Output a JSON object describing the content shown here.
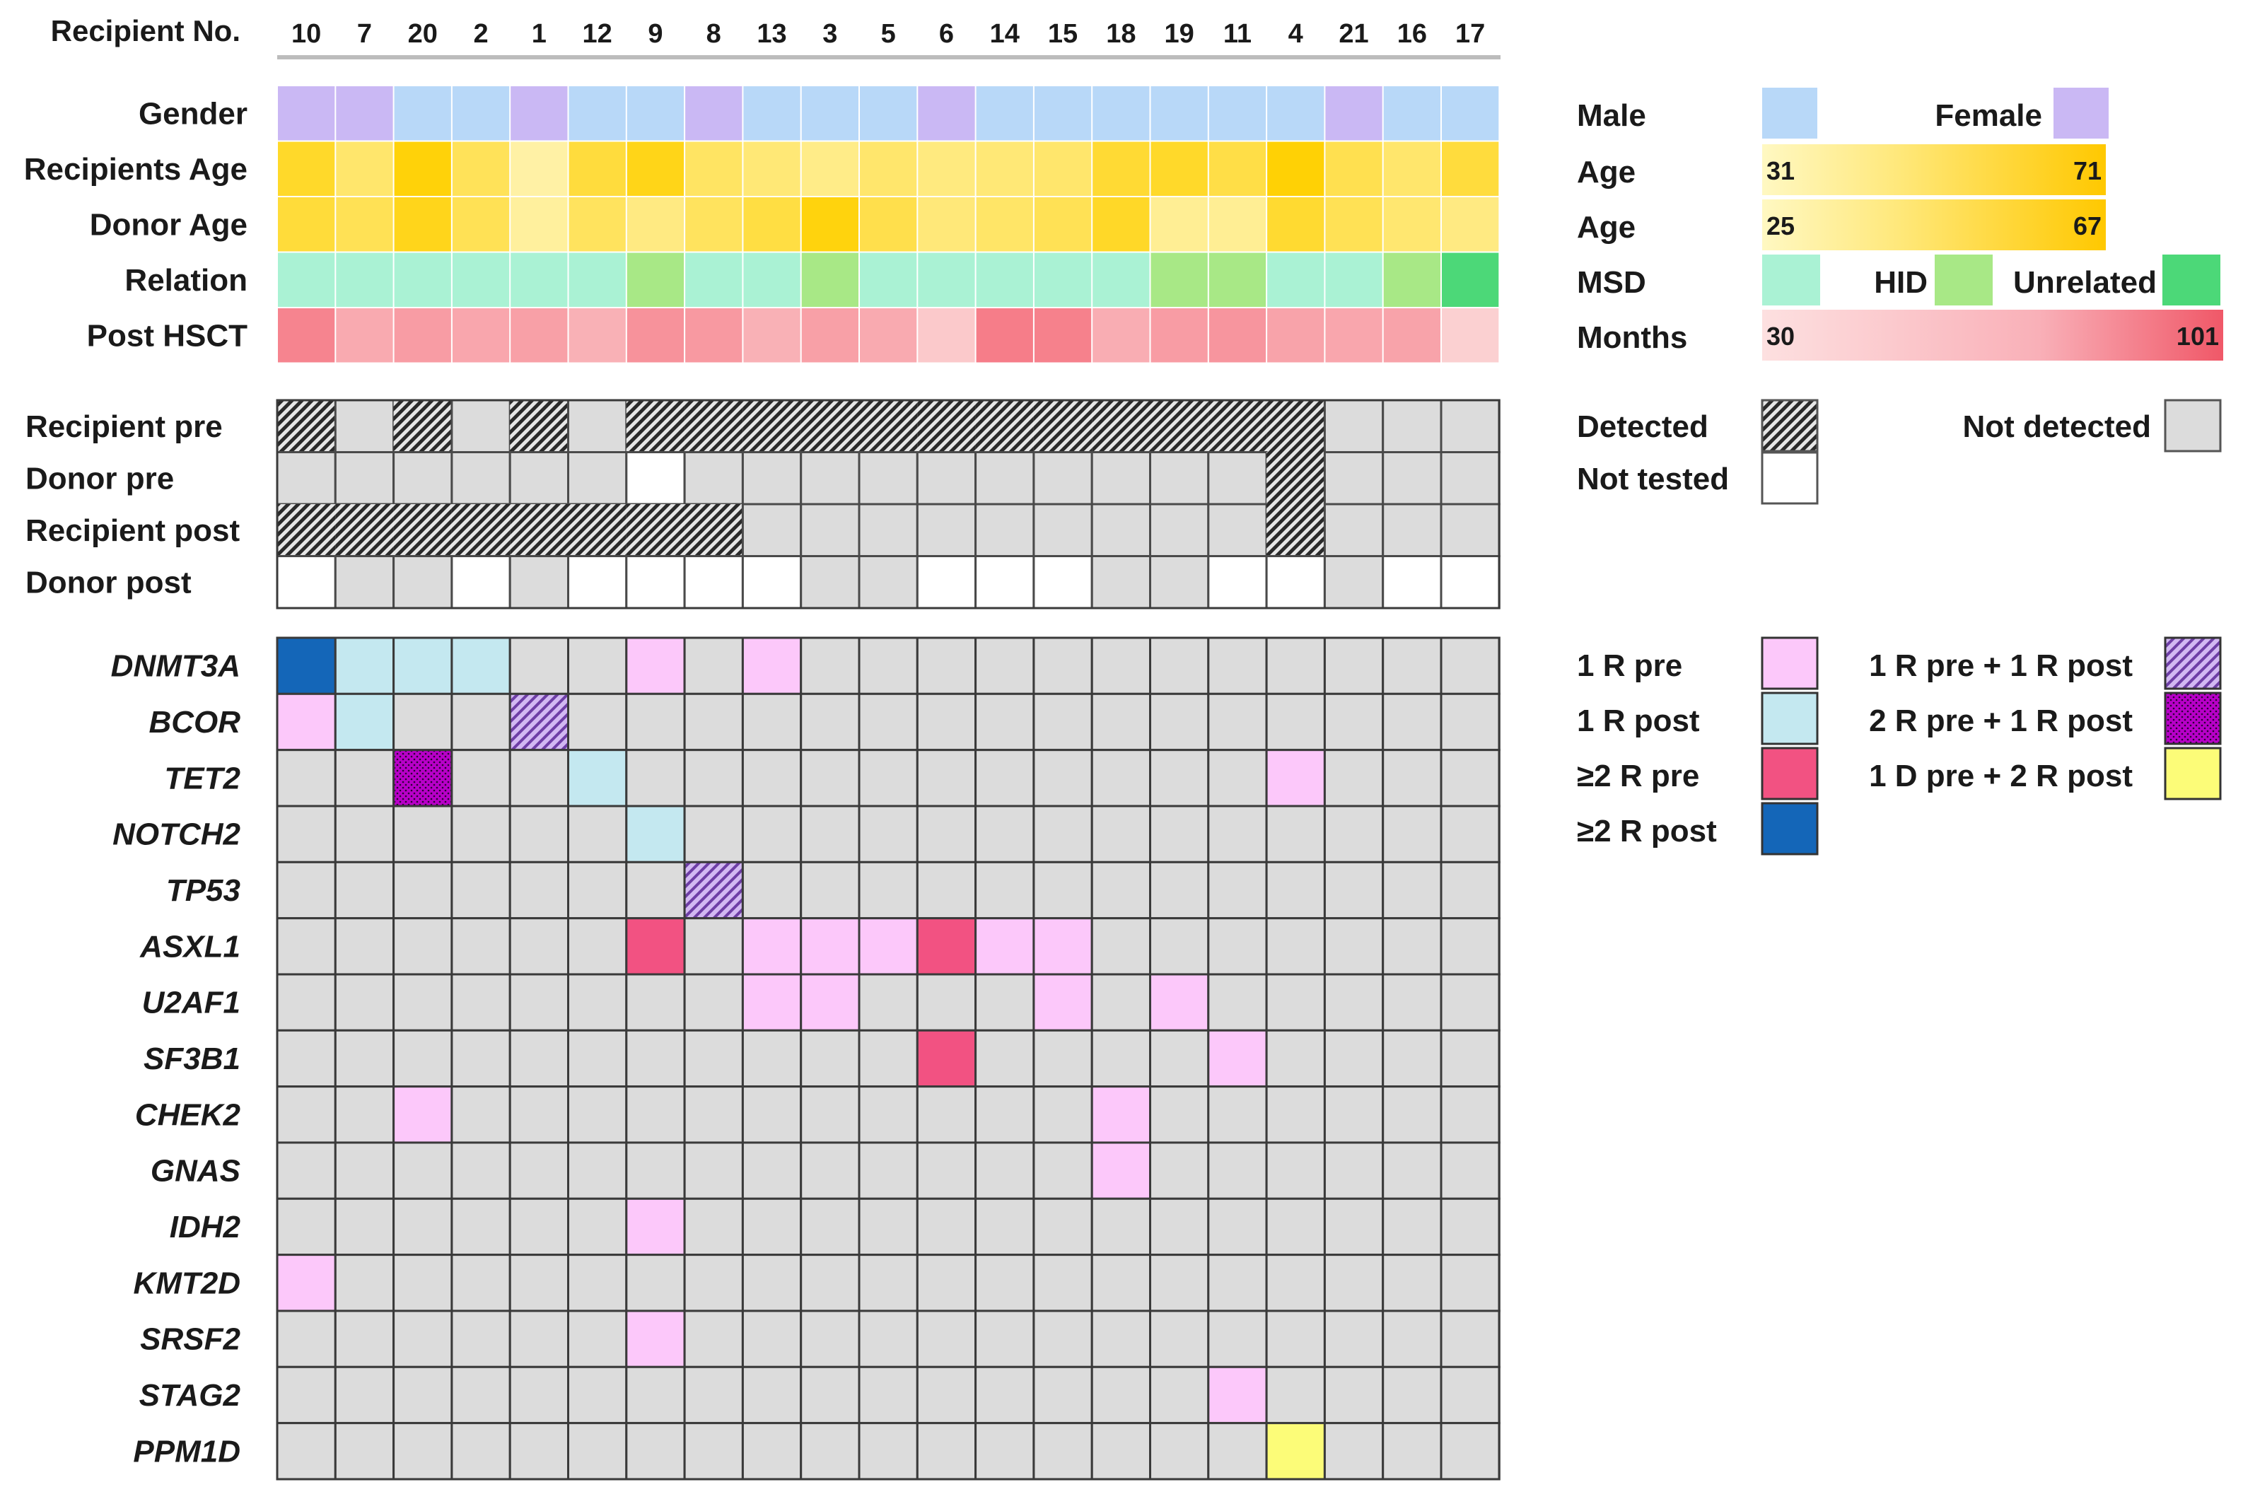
{
  "chart_data": {
    "type": "heatmap",
    "title": "",
    "recipient_header": "Recipient No.",
    "recipients": [
      "10",
      "7",
      "20",
      "2",
      "1",
      "12",
      "9",
      "8",
      "13",
      "3",
      "5",
      "6",
      "14",
      "15",
      "18",
      "19",
      "11",
      "4",
      "21",
      "16",
      "17"
    ],
    "clinical_rows": [
      {
        "label": "Gender",
        "key": "gender"
      },
      {
        "label": "Recipients Age",
        "key": "recipient_age"
      },
      {
        "label": "Donor Age",
        "key": "donor_age"
      },
      {
        "label": "Relation",
        "key": "relation"
      },
      {
        "label": "Post HSCT",
        "key": "post_hsct"
      }
    ],
    "gender": [
      "F",
      "F",
      "M",
      "M",
      "F",
      "M",
      "M",
      "F",
      "M",
      "M",
      "M",
      "F",
      "M",
      "M",
      "M",
      "M",
      "M",
      "M",
      "F",
      "M",
      "M"
    ],
    "recipient_age": [
      62,
      48,
      69,
      52,
      36,
      58,
      66,
      50,
      46,
      42,
      48,
      44,
      46,
      48,
      60,
      62,
      56,
      70,
      54,
      48,
      58
    ],
    "donor_age": [
      54,
      48,
      61,
      48,
      32,
      46,
      38,
      46,
      52,
      64,
      50,
      40,
      44,
      48,
      58,
      34,
      34,
      56,
      48,
      42,
      38
    ],
    "relation": [
      "MSD",
      "MSD",
      "MSD",
      "MSD",
      "MSD",
      "MSD",
      "HID",
      "MSD",
      "MSD",
      "HID",
      "MSD",
      "MSD",
      "MSD",
      "MSD",
      "MSD",
      "HID",
      "HID",
      "MSD",
      "MSD",
      "HID",
      "Unrelated"
    ],
    "post_hsct_months": [
      80,
      58,
      66,
      60,
      64,
      54,
      72,
      68,
      54,
      64,
      58,
      40,
      84,
      82,
      56,
      66,
      70,
      62,
      60,
      62,
      36
    ],
    "testing_rows": [
      {
        "label": "Recipient pre",
        "values": [
          "D",
          "N",
          "D",
          "N",
          "D",
          "N",
          "D",
          "D",
          "D",
          "D",
          "D",
          "D",
          "D",
          "D",
          "D",
          "D",
          "D",
          "D",
          "N",
          "N",
          "N"
        ]
      },
      {
        "label": "Donor pre",
        "values": [
          "N",
          "N",
          "N",
          "N",
          "N",
          "N",
          "T",
          "N",
          "N",
          "N",
          "N",
          "N",
          "N",
          "N",
          "N",
          "N",
          "N",
          "D",
          "N",
          "N",
          "N"
        ]
      },
      {
        "label": "Recipient post",
        "values": [
          "D",
          "D",
          "D",
          "D",
          "D",
          "D",
          "D",
          "D",
          "N",
          "N",
          "N",
          "N",
          "N",
          "N",
          "N",
          "N",
          "N",
          "D",
          "N",
          "N",
          "N"
        ]
      },
      {
        "label": "Donor post",
        "values": [
          "T",
          "N",
          "N",
          "T",
          "N",
          "T",
          "T",
          "T",
          "T",
          "N",
          "N",
          "T",
          "T",
          "T",
          "N",
          "N",
          "T",
          "T",
          "N",
          "T",
          "T"
        ]
      }
    ],
    "genes": [
      "DNMT3A",
      "BCOR",
      "TET2",
      "NOTCH2",
      "TP53",
      "ASXL1",
      "U2AF1",
      "SF3B1",
      "CHEK2",
      "GNAS",
      "IDH2",
      "KMT2D",
      "SRSF2",
      "STAG2",
      "PPM1D"
    ],
    "mutation_matrix": [
      [
        "R2POST",
        "R1POST",
        "R1POST",
        "R1POST",
        "-",
        "-",
        "R1PRE",
        "-",
        "R1PRE",
        "-",
        "-",
        "-",
        "-",
        "-",
        "-",
        "-",
        "-",
        "-",
        "-",
        "-",
        "-"
      ],
      [
        "R1PRE",
        "R1POST",
        "-",
        "-",
        "R1PRE_R1POST",
        "-",
        "-",
        "-",
        "-",
        "-",
        "-",
        "-",
        "-",
        "-",
        "-",
        "-",
        "-",
        "-",
        "-",
        "-",
        "-"
      ],
      [
        "-",
        "-",
        "R2PRE_R1POST",
        "-",
        "-",
        "R1POST",
        "-",
        "-",
        "-",
        "-",
        "-",
        "-",
        "-",
        "-",
        "-",
        "-",
        "-",
        "R1PRE",
        "-",
        "-",
        "-"
      ],
      [
        "-",
        "-",
        "-",
        "-",
        "-",
        "-",
        "R1POST",
        "-",
        "-",
        "-",
        "-",
        "-",
        "-",
        "-",
        "-",
        "-",
        "-",
        "-",
        "-",
        "-",
        "-"
      ],
      [
        "-",
        "-",
        "-",
        "-",
        "-",
        "-",
        "-",
        "R1PRE_R1POST",
        "-",
        "-",
        "-",
        "-",
        "-",
        "-",
        "-",
        "-",
        "-",
        "-",
        "-",
        "-",
        "-"
      ],
      [
        "-",
        "-",
        "-",
        "-",
        "-",
        "-",
        "R2PRE",
        "-",
        "R1PRE",
        "R1PRE",
        "R1PRE",
        "R2PRE",
        "R1PRE",
        "R1PRE",
        "-",
        "-",
        "-",
        "-",
        "-",
        "-",
        "-"
      ],
      [
        "-",
        "-",
        "-",
        "-",
        "-",
        "-",
        "-",
        "-",
        "R1PRE",
        "R1PRE",
        "-",
        "-",
        "-",
        "R1PRE",
        "-",
        "R1PRE",
        "-",
        "-",
        "-",
        "-",
        "-"
      ],
      [
        "-",
        "-",
        "-",
        "-",
        "-",
        "-",
        "-",
        "-",
        "-",
        "-",
        "-",
        "R2PRE",
        "-",
        "-",
        "-",
        "-",
        "R1PRE",
        "-",
        "-",
        "-",
        "-"
      ],
      [
        "-",
        "-",
        "R1PRE",
        "-",
        "-",
        "-",
        "-",
        "-",
        "-",
        "-",
        "-",
        "-",
        "-",
        "-",
        "R1PRE",
        "-",
        "-",
        "-",
        "-",
        "-",
        "-"
      ],
      [
        "-",
        "-",
        "-",
        "-",
        "-",
        "-",
        "-",
        "-",
        "-",
        "-",
        "-",
        "-",
        "-",
        "-",
        "R1PRE",
        "-",
        "-",
        "-",
        "-",
        "-",
        "-"
      ],
      [
        "-",
        "-",
        "-",
        "-",
        "-",
        "-",
        "R1PRE",
        "-",
        "-",
        "-",
        "-",
        "-",
        "-",
        "-",
        "-",
        "-",
        "-",
        "-",
        "-",
        "-",
        "-"
      ],
      [
        "R1PRE",
        "-",
        "-",
        "-",
        "-",
        "-",
        "-",
        "-",
        "-",
        "-",
        "-",
        "-",
        "-",
        "-",
        "-",
        "-",
        "-",
        "-",
        "-",
        "-",
        "-"
      ],
      [
        "-",
        "-",
        "-",
        "-",
        "-",
        "-",
        "R1PRE",
        "-",
        "-",
        "-",
        "-",
        "-",
        "-",
        "-",
        "-",
        "-",
        "-",
        "-",
        "-",
        "-",
        "-"
      ],
      [
        "-",
        "-",
        "-",
        "-",
        "-",
        "-",
        "-",
        "-",
        "-",
        "-",
        "-",
        "-",
        "-",
        "-",
        "-",
        "-",
        "R1PRE",
        "-",
        "-",
        "-",
        "-"
      ],
      [
        "-",
        "-",
        "-",
        "-",
        "-",
        "-",
        "-",
        "-",
        "-",
        "-",
        "-",
        "-",
        "-",
        "-",
        "-",
        "-",
        "-",
        "D1PRE_R2POST",
        "-",
        "-",
        "-"
      ]
    ]
  },
  "legend": {
    "male": "Male",
    "female": "Female",
    "recipient_age_label": "Age",
    "recipient_age_min": "31",
    "recipient_age_max": "71",
    "donor_age_label": "Age",
    "donor_age_min": "25",
    "donor_age_max": "67",
    "msd": "MSD",
    "hid": "HID",
    "unrelated": "Unrelated",
    "months_label": "Months",
    "months_min": "30",
    "months_max": "101",
    "detected": "Detected",
    "not_detected": "Not detected",
    "not_tested": "Not tested",
    "r1pre": "1 R pre",
    "r1post": "1 R post",
    "r2pre": "≥2 R pre",
    "r2post": "≥2 R post",
    "r1pre_r1post": "1 R pre + 1 R post",
    "r2pre_r1post": "2 R pre + 1 R post",
    "d1pre_r2post": "1 D pre + 2 R post"
  },
  "colors": {
    "male": "#b8d8f8",
    "female": "#cab8f4",
    "msd": "#aaf2d4",
    "hid": "#a8e886",
    "unrelated": "#4cd878",
    "grey": "#dcdcdc",
    "not_tested": "#ffffff",
    "r1pre": "#fcc8fa",
    "r1post": "#c4e8f0",
    "r2pre": "#f25282",
    "r2post": "#1466b8",
    "r1pre_r1post": "#b48ada",
    "r2pre_r1post": "#b800c8",
    "d1pre_r2post": "#fcfc78",
    "age_low": "#fff6bc",
    "age_high": "#ffd000",
    "months_low": "#fcdada",
    "months_high": "#f46070"
  }
}
